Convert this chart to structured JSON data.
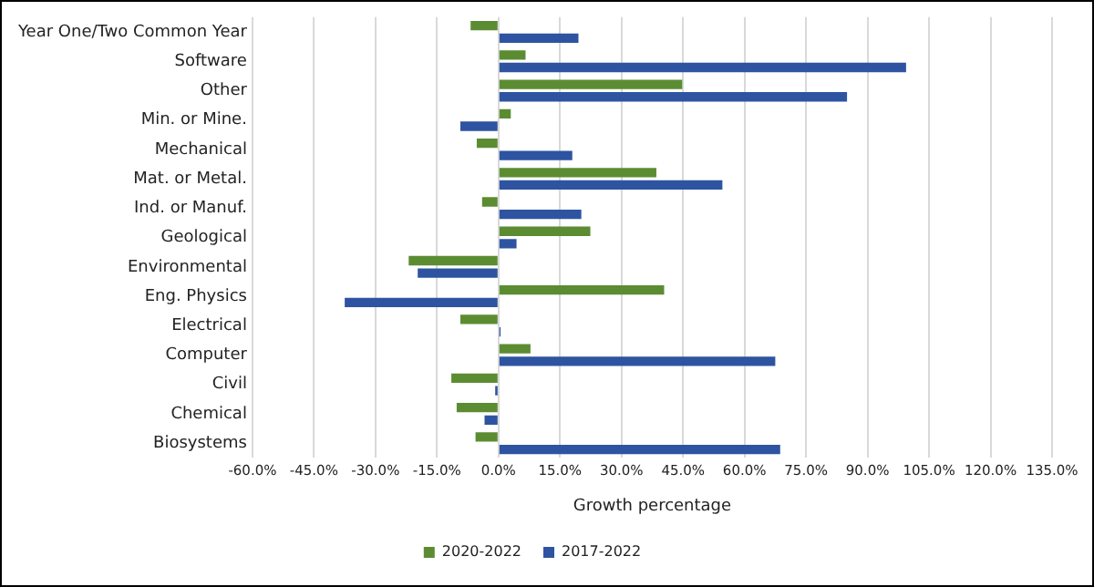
{
  "chart_data": {
    "type": "bar",
    "orientation": "horizontal",
    "xlabel": "Growth percentage",
    "categories": [
      "Year One/Two Common Year",
      "Software",
      "Other",
      "Min. or Mine.",
      "Mechanical",
      "Mat. or Metal.",
      "Ind. or Manuf.",
      "Geological",
      "Environmental",
      "Eng. Physics",
      "Electrical",
      "Computer",
      "Civil",
      "Chemical",
      "Biosystems"
    ],
    "series": [
      {
        "name": "2020-2022",
        "color": "#5b8c32",
        "values": [
          -6.8,
          6.6,
          44.8,
          3,
          -5.3,
          38.5,
          -4,
          22.4,
          -21.9,
          40.4,
          -9.3,
          7.8,
          -11.5,
          -10.2,
          -5.6
        ]
      },
      {
        "name": "2017-2022",
        "color": "#2e54a1",
        "values": [
          19.5,
          99.4,
          85,
          -9.3,
          18,
          54.6,
          20.2,
          4.4,
          -19.7,
          -37.5,
          0.5,
          67.5,
          -0.8,
          -3.4,
          68.7
        ]
      }
    ],
    "xlim": [
      -60,
      135
    ],
    "xticks": [
      {
        "value": -60,
        "label": "-60.0%"
      },
      {
        "value": -45,
        "label": "-45.0%"
      },
      {
        "value": -30,
        "label": "-30.0%"
      },
      {
        "value": -15,
        "label": "-15.0%"
      },
      {
        "value": 0,
        "label": "0.0%"
      },
      {
        "value": 15,
        "label": "15.0%"
      },
      {
        "value": 30,
        "label": "30.0%"
      },
      {
        "value": 45,
        "label": "45.0%"
      },
      {
        "value": 60,
        "label": "60.0%"
      },
      {
        "value": 75,
        "label": "75.0%"
      },
      {
        "value": 90,
        "label": "90.0%"
      },
      {
        "value": 105,
        "label": "105.0%"
      },
      {
        "value": 120,
        "label": "120.0%"
      },
      {
        "value": 135,
        "label": "135.0%"
      }
    ],
    "grid": "x",
    "legend": "bottom"
  }
}
